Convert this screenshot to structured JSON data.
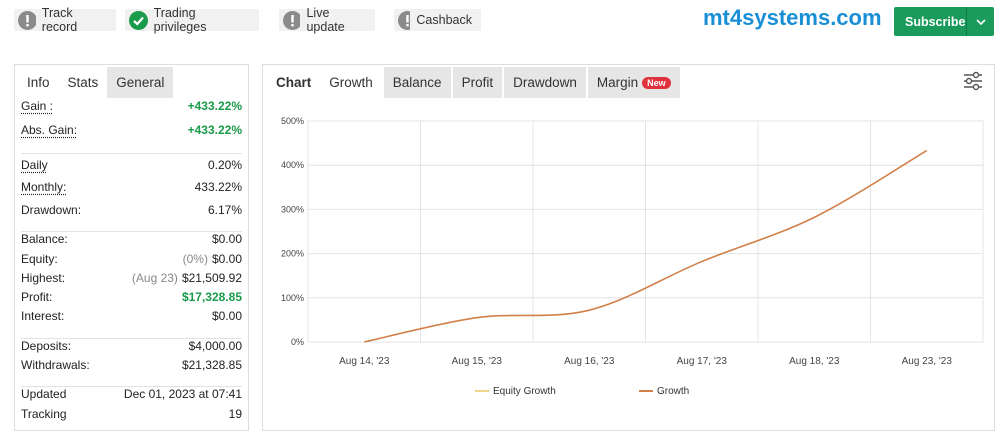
{
  "badges": [
    {
      "label": "Track record",
      "icon": "alert"
    },
    {
      "label": "Trading privileges",
      "icon": "check"
    },
    {
      "label": "Live update",
      "icon": "alert"
    },
    {
      "label": "Cashback",
      "icon": "alert"
    }
  ],
  "brand": "mt4systems.com",
  "subscribe": "Subscribe",
  "stats_panel": {
    "tabs": [
      "Info",
      "Stats",
      "General"
    ],
    "groups": [
      [
        {
          "label": "Gain :",
          "value": "+433.22%",
          "color": "#1a9b4b",
          "hint": true
        },
        {
          "label": "Abs. Gain:",
          "value": "+433.22%",
          "color": "#1a9b4b",
          "hint": true
        }
      ],
      [
        {
          "label": "Daily",
          "value": "0.20%",
          "hint": true
        },
        {
          "label": "Monthly:",
          "value": "433.22%",
          "hint": true
        },
        {
          "label": "Drawdown:",
          "value": "6.17%"
        }
      ],
      [
        {
          "label": "Balance:",
          "value": "$0.00"
        },
        {
          "label": "Equity:",
          "note": "(0%)",
          "value": "$0.00"
        },
        {
          "label": "Highest:",
          "note": "(Aug 23)",
          "value": "$21,509.92"
        },
        {
          "label": "Profit:",
          "value": "$17,328.85",
          "color": "#1a9b4b"
        },
        {
          "label": "Interest:",
          "value": "$0.00"
        }
      ],
      [
        {
          "label": "Deposits:",
          "value": "$4,000.00"
        },
        {
          "label": "Withdrawals:",
          "value": "$21,328.85"
        }
      ],
      [
        {
          "label": "Updated",
          "value": "Dec 01, 2023 at 07:41"
        },
        {
          "label": "Tracking",
          "value": "19"
        }
      ]
    ]
  },
  "chart_panel": {
    "tabs": [
      "Chart",
      "Growth",
      "Balance",
      "Profit",
      "Drawdown",
      "Margin"
    ],
    "new_badge": "New"
  },
  "chart_data": {
    "type": "line",
    "categories": [
      "Aug 14, '23",
      "Aug 15, '23",
      "Aug 16, '23",
      "Aug 17, '23",
      "Aug 18, '23",
      "Aug 23, '23"
    ],
    "series": [
      {
        "name": "Growth",
        "color": "#d2804a",
        "values": [
          0,
          55,
          72,
          182,
          282,
          433.22
        ]
      }
    ],
    "legend": [
      {
        "name": "Equity Growth",
        "color": "#f0d58a"
      },
      {
        "name": "Growth",
        "color": "#d2804a"
      }
    ],
    "ylim": [
      0,
      500
    ],
    "yticks": [
      {
        "value": 0,
        "label": "0%"
      },
      {
        "value": 100,
        "label": "100%"
      },
      {
        "value": 200,
        "label": "200%"
      },
      {
        "value": 300,
        "label": "300%"
      },
      {
        "value": 400,
        "label": "400%"
      },
      {
        "value": 500,
        "label": "500%"
      }
    ],
    "grid": true
  }
}
